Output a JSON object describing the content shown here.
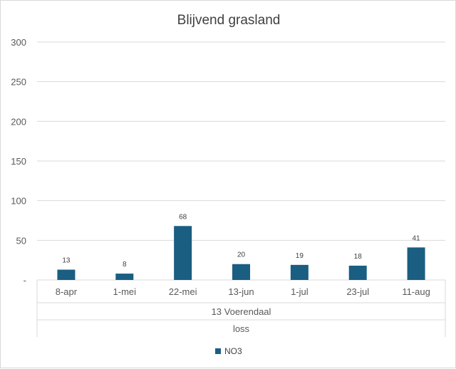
{
  "chart_data": {
    "type": "bar",
    "title": "Blijvend grasland",
    "categories": [
      "8-apr",
      "1-mei",
      "22-mei",
      "13-jun",
      "1-jul",
      "23-jul",
      "11-aug"
    ],
    "group_labels": [
      "13 Voerendaal",
      "loss"
    ],
    "series": [
      {
        "name": "NO3",
        "values": [
          13,
          8,
          68,
          20,
          19,
          18,
          41
        ],
        "color": "#1a5e82"
      }
    ],
    "data_labels": [
      "13",
      "8",
      "68",
      "20",
      "19",
      "18",
      "41"
    ],
    "ylim": [
      0,
      300
    ],
    "y_ticks": [
      0,
      50,
      100,
      150,
      200,
      250,
      300
    ],
    "y_tick_labels": [
      "-",
      "50",
      "100",
      "150",
      "200",
      "250",
      "300"
    ],
    "grid": true,
    "legend_position": "bottom"
  }
}
